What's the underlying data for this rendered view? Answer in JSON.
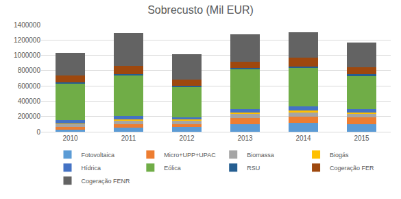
{
  "chart_data": {
    "type": "bar",
    "title": "Sobrecusto (Mil EUR)",
    "stacked": true,
    "categories": [
      "2010",
      "2011",
      "2012",
      "2013",
      "2014",
      "2015"
    ],
    "series": [
      {
        "name": "Fotovoltaica",
        "color": "#5B9BD5",
        "values": [
          30000,
          50000,
          60000,
          100000,
          120000,
          95000
        ]
      },
      {
        "name": "Micro+UPP+UPAC",
        "color": "#ED7D31",
        "values": [
          30000,
          50000,
          40000,
          80000,
          80000,
          90000
        ]
      },
      {
        "name": "Biomassa",
        "color": "#A5A5A5",
        "values": [
          40000,
          50000,
          50000,
          50000,
          50000,
          50000
        ]
      },
      {
        "name": "Biogás",
        "color": "#FFC000",
        "values": [
          10000,
          15000,
          15000,
          20000,
          30000,
          20000
        ]
      },
      {
        "name": "Hídrica",
        "color": "#4472C4",
        "values": [
          45000,
          40000,
          20000,
          45000,
          50000,
          40000
        ]
      },
      {
        "name": "Eólica",
        "color": "#70AD47",
        "values": [
          475000,
          535000,
          405000,
          525000,
          510000,
          440000
        ]
      },
      {
        "name": "RSU",
        "color": "#255E91",
        "values": [
          15000,
          15000,
          15000,
          15000,
          15000,
          15000
        ]
      },
      {
        "name": "Cogeração FER",
        "color": "#9E480E",
        "values": [
          90000,
          105000,
          75000,
          80000,
          110000,
          95000
        ]
      },
      {
        "name": "Cogeração FENR",
        "color": "#636363",
        "values": [
          295000,
          430000,
          330000,
          360000,
          335000,
          320000
        ]
      }
    ],
    "ylim": [
      0,
      1400000
    ],
    "yticks": [
      0,
      200000,
      400000,
      600000,
      800000,
      1000000,
      1200000,
      1400000
    ],
    "grid": true,
    "legend": "bottom"
  }
}
